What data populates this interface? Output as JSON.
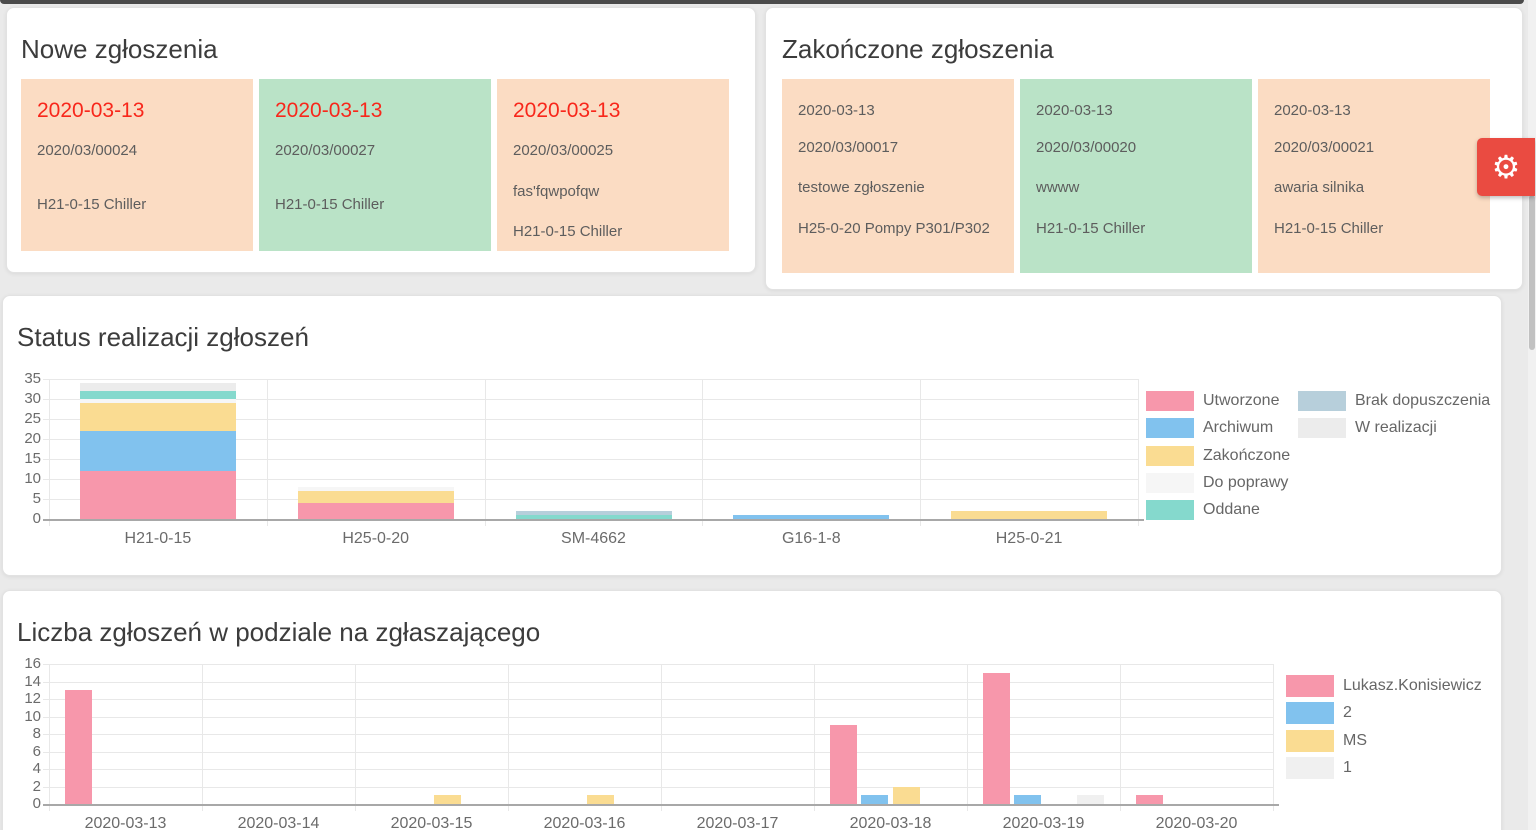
{
  "colors": {
    "date_red": "#f8271b",
    "gear_red": "#ea4b41",
    "card_peach": "#fbdcc3",
    "card_green": "#bae3c7"
  },
  "panels": {
    "new_reports": {
      "title": "Nowe zgłoszenia",
      "cards": [
        {
          "variant": "peach",
          "date": "2020-03-13",
          "date_style": "red",
          "number": "2020/03/00024",
          "title": "",
          "machine": "H21-0-15 Chiller"
        },
        {
          "variant": "green",
          "date": "2020-03-13",
          "date_style": "red",
          "number": "2020/03/00027",
          "title": "",
          "machine": "H21-0-15 Chiller"
        },
        {
          "variant": "peach",
          "date": "2020-03-13",
          "date_style": "red",
          "number": "2020/03/00025",
          "title": "fas'fqwpofqw",
          "machine": "H21-0-15 Chiller"
        }
      ]
    },
    "completed_reports": {
      "title": "Zakończone zgłoszenia",
      "cards": [
        {
          "variant": "peach",
          "date": "2020-03-13",
          "date_style": "gray",
          "number": "2020/03/00017",
          "title": "testowe zgłoszenie",
          "machine": "H25-0-20 Pompy P301/P302"
        },
        {
          "variant": "green",
          "date": "2020-03-13",
          "date_style": "gray",
          "number": "2020/03/00020",
          "title": "wwww",
          "machine": "H21-0-15 Chiller"
        },
        {
          "variant": "peach",
          "date": "2020-03-13",
          "date_style": "gray",
          "number": "2020/03/00021",
          "title": "awaria silnika",
          "machine": "H21-0-15 Chiller"
        }
      ]
    }
  },
  "settings_button": {
    "icon": "gear",
    "glyph": "⚙"
  },
  "chart_data": [
    {
      "type": "bar",
      "stacked": true,
      "title": "Status realizacji zgłoszeń",
      "categories": [
        "H21-0-15",
        "H25-0-20",
        "SM-4662",
        "G16-1-8",
        "H25-0-21"
      ],
      "series": [
        {
          "name": "Utworzone",
          "color": "#f797ab",
          "values": [
            12,
            4,
            0,
            0,
            0
          ]
        },
        {
          "name": "Archiwum",
          "color": "#81c2ee",
          "values": [
            10,
            0,
            0,
            1,
            0
          ]
        },
        {
          "name": "Zakończone",
          "color": "#fadc92",
          "values": [
            7,
            3,
            0,
            0,
            2
          ]
        },
        {
          "name": "Do poprawy",
          "color": "#f6f6f6",
          "values": [
            1,
            1,
            0,
            0,
            0
          ]
        },
        {
          "name": "Oddane",
          "color": "#85d9cd",
          "values": [
            2,
            0,
            1,
            0,
            0
          ]
        },
        {
          "name": "Brak dopuszczenia",
          "color": "#b7cfdb",
          "values": [
            0,
            0,
            1,
            0,
            0
          ]
        },
        {
          "name": "W realizacji",
          "color": "#ececec",
          "values": [
            2,
            0,
            0,
            0,
            0
          ]
        }
      ],
      "xlabel": "",
      "ylabel": "",
      "ylim": [
        0,
        35
      ],
      "ystep": 5,
      "grid": true,
      "legend_position": "right"
    },
    {
      "type": "bar",
      "stacked": false,
      "title": "Liczba zgłoszeń w podziale na zgłaszającego",
      "categories": [
        "2020-03-13",
        "2020-03-14",
        "2020-03-15",
        "2020-03-16",
        "2020-03-17",
        "2020-03-18",
        "2020-03-19",
        "2020-03-20"
      ],
      "series": [
        {
          "name": "Lukasz.Konisiewicz",
          "color": "#f797ab",
          "values": [
            13,
            0,
            0,
            0,
            0,
            9,
            15,
            1
          ]
        },
        {
          "name": "2",
          "color": "#81c2ee",
          "values": [
            0,
            0,
            0,
            0,
            0,
            1,
            1,
            0
          ]
        },
        {
          "name": "MS",
          "color": "#fadc92",
          "values": [
            0,
            0,
            1,
            1,
            0,
            2,
            0,
            0
          ]
        },
        {
          "name": "1",
          "color": "#f0f0f0",
          "values": [
            0,
            0,
            0,
            0,
            0,
            0,
            1,
            0
          ]
        }
      ],
      "xlabel": "",
      "ylabel": "",
      "ylim": [
        0,
        16
      ],
      "ystep": 2,
      "grid": true,
      "legend_position": "right"
    }
  ]
}
